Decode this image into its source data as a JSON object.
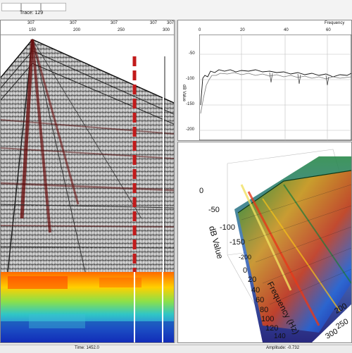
{
  "toolbar": {
    "trace_label": "Trace: 129"
  },
  "seismic": {
    "top_ticks": [
      "307",
      "307",
      "307",
      "307",
      "307"
    ],
    "bottom_ticks": [
      "150",
      "200",
      "250",
      "300"
    ]
  },
  "spectrum_plot": {
    "title": "Frequency",
    "x_ticks": [
      "0",
      "20",
      "40",
      "60"
    ],
    "y_ticks": [
      "-50",
      "-100",
      "-150",
      "-200"
    ],
    "ylabel": "dB Value"
  },
  "surface_3d": {
    "z_ticks": [
      "0",
      "-50",
      "-100",
      "-150",
      "-200"
    ],
    "zlabel": "dB Value",
    "x_ticks": [
      "0",
      "20",
      "40",
      "60",
      "80",
      "100",
      "120",
      "140"
    ],
    "xlabel": "Frequency (Hz)",
    "y_ticks": [
      "200",
      "250",
      "300"
    ]
  },
  "statusbar": {
    "time": "Time: 1452.0",
    "amplitude": "Amplitude: -0.732"
  },
  "colors": {
    "seismic_bg": "#b9b9b9",
    "trace_red": "#8b1a1a",
    "heatmap_orange": "#ff6a00",
    "heatmap_blue": "#1536c8"
  }
}
